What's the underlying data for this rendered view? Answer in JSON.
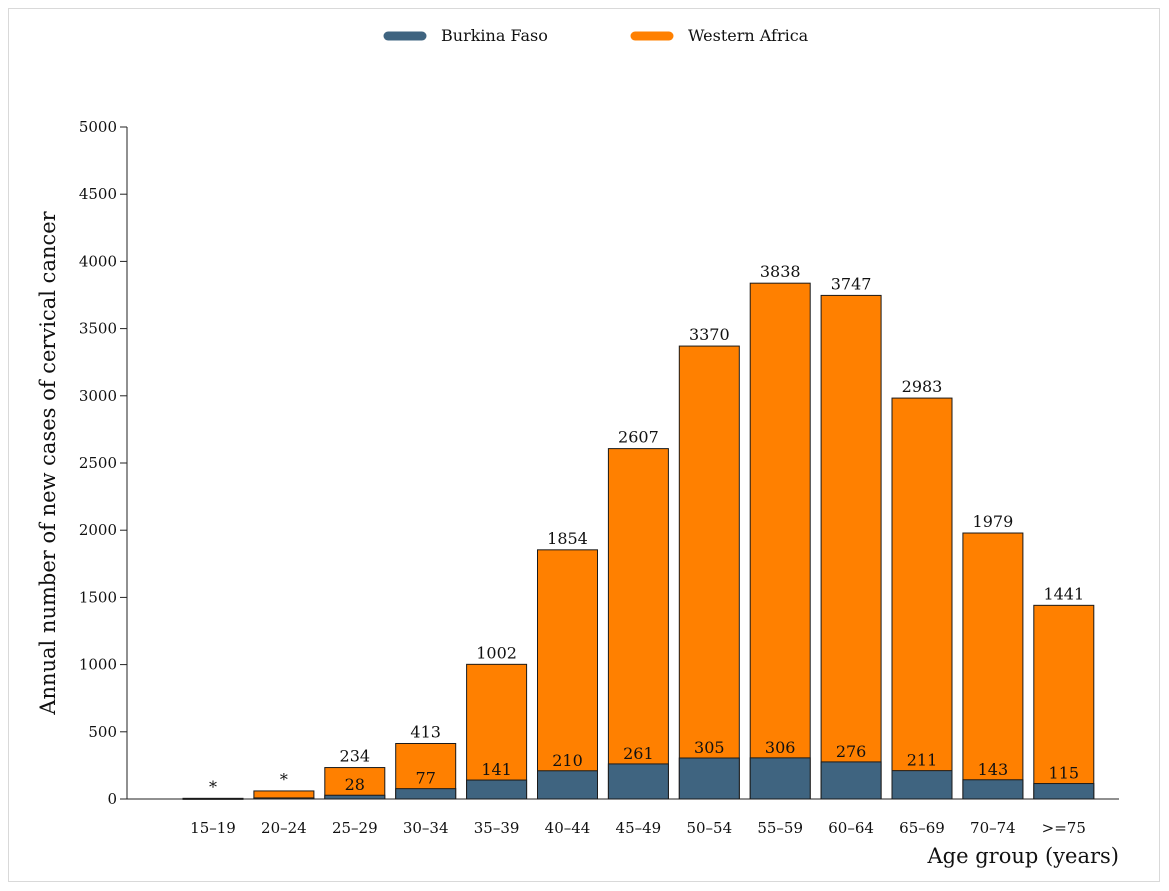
{
  "chart_data": {
    "type": "bar",
    "stacked": false,
    "overlaid": true,
    "categories": [
      "15–19",
      "20–24",
      "25–29",
      "30–34",
      "35–39",
      "40–44",
      "45–49",
      "50–54",
      "55–59",
      "60–64",
      "65–69",
      "70–74",
      ">=75"
    ],
    "series": [
      {
        "name": "Western Africa",
        "color": "#ff8000",
        "values": [
          5,
          60,
          234,
          413,
          1002,
          1854,
          2607,
          3370,
          3838,
          3747,
          2983,
          1979,
          1441
        ],
        "labels": [
          "*",
          "*",
          "234",
          "413",
          "1002",
          "1854",
          "2607",
          "3370",
          "3838",
          "3747",
          "2983",
          "1979",
          "1441"
        ]
      },
      {
        "name": "Burkina Faso",
        "color": "#3f6480",
        "values": [
          1,
          8,
          28,
          77,
          141,
          210,
          261,
          305,
          306,
          276,
          211,
          143,
          115
        ],
        "labels": [
          "",
          "",
          "28",
          "77",
          "141",
          "210",
          "261",
          "305",
          "306",
          "276",
          "211",
          "143",
          "115"
        ]
      }
    ],
    "legend": {
      "position": "top-center",
      "order": [
        "Burkina Faso",
        "Western Africa"
      ]
    },
    "xlabel": "Age group (years)",
    "ylabel": "Annual number of new cases of cervical cancer",
    "ylim": [
      0,
      5000
    ],
    "yticks": [
      0,
      500,
      1000,
      1500,
      2000,
      2500,
      3000,
      3500,
      4000,
      4500,
      5000
    ],
    "grid": false
  }
}
